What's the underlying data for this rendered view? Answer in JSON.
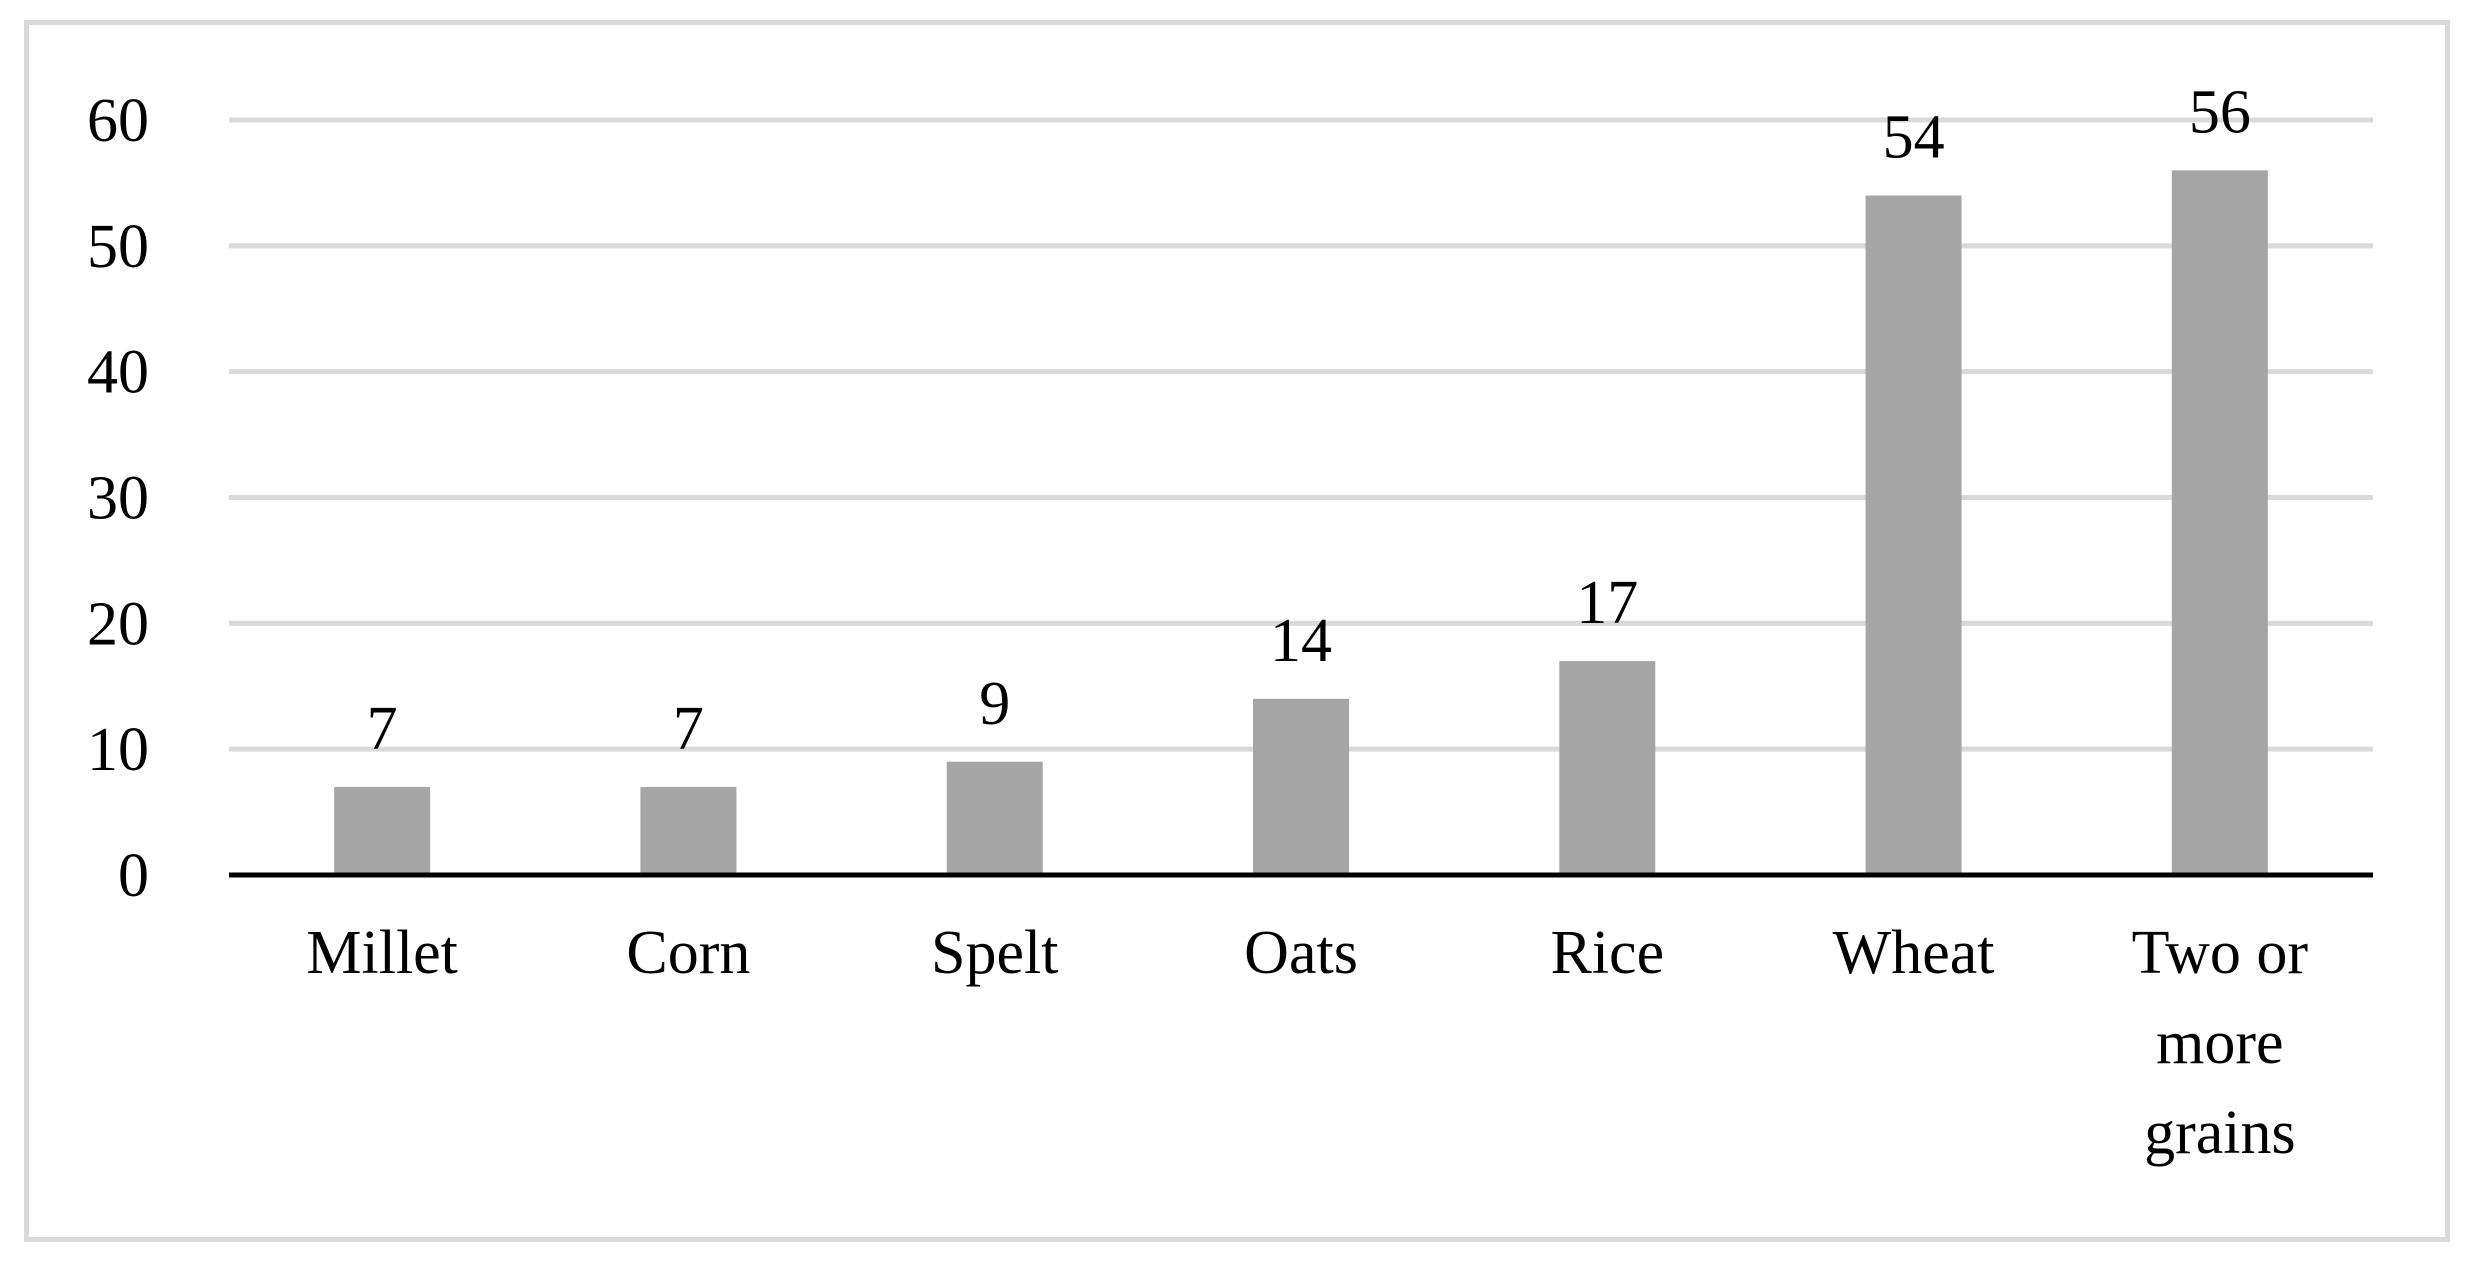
{
  "chart_data": {
    "type": "bar",
    "categories": [
      "Millet",
      "Corn",
      "Spelt",
      "Oats",
      "Rice",
      "Wheat",
      "Two or more grains"
    ],
    "values": [
      7,
      7,
      9,
      14,
      17,
      54,
      56
    ],
    "data_labels": [
      "7",
      "7",
      "9",
      "14",
      "17",
      "54",
      "56"
    ],
    "title": "",
    "xlabel": "",
    "ylabel": "",
    "ylim": [
      0,
      60
    ],
    "yticks": [
      0,
      10,
      20,
      30,
      40,
      50,
      60
    ],
    "ytick_labels": [
      "0",
      "10",
      "20",
      "30",
      "40",
      "50",
      "60"
    ],
    "grid": true,
    "legend": "none",
    "colors": {
      "bar": "#a5a5a5",
      "gridline": "#d9d9d9",
      "axis": "#000000",
      "frame": "#d9d9d9"
    }
  }
}
